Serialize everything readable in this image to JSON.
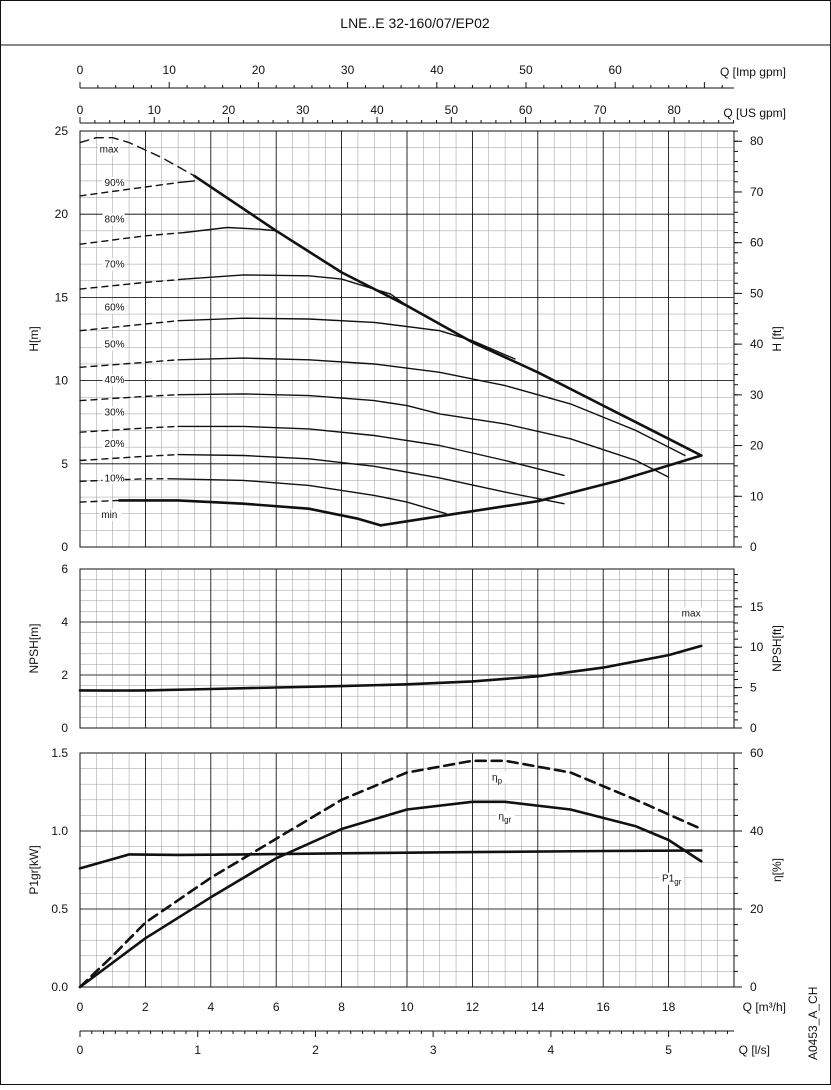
{
  "title": "LNE..E 32-160/07/EP02",
  "code": "A0453_A_CH",
  "colors": {
    "ink": "#111111",
    "grid": "#000000",
    "minor": "#9a9a9a",
    "bg": "#ffffff"
  },
  "chart_data": [
    {
      "type": "line",
      "panel": "head",
      "title": "LNE..E 32-160/07/EP02",
      "xlabel": "Q [m³/h]",
      "ylabel": "H[m]",
      "y2label": "H [ft]",
      "xlim": [
        0,
        20
      ],
      "ylim": [
        0,
        25
      ],
      "y2lim": [
        0,
        82.02
      ],
      "grid": true,
      "x_ticks": [
        0,
        2,
        4,
        6,
        8,
        10,
        12,
        14,
        16,
        18
      ],
      "y_ticks": [
        0,
        5,
        10,
        15,
        20,
        25
      ],
      "y2_ticks": [
        0,
        10,
        20,
        30,
        40,
        50,
        60,
        70,
        80
      ],
      "top_axes": [
        {
          "label": "Q [Imp gpm]",
          "ticks": [
            0,
            10,
            20,
            30,
            40,
            50,
            60
          ],
          "per_m3h": 3.666
        },
        {
          "label": "Q [US gpm]",
          "ticks": [
            0,
            10,
            20,
            30,
            40,
            50,
            60,
            70,
            80
          ],
          "per_m3h": 4.403
        }
      ],
      "series": [
        {
          "name": "max",
          "style": "dashed",
          "points": [
            [
              0,
              24.3
            ],
            [
              0.5,
              24.6
            ],
            [
              1,
              24.6
            ],
            [
              1.5,
              24.3
            ],
            [
              2.5,
              23.4
            ],
            [
              3.5,
              22.3
            ]
          ]
        },
        {
          "name": "max",
          "style": "bold",
          "points": [
            [
              3.5,
              22.3
            ],
            [
              6,
              19.0
            ],
            [
              8,
              16.5
            ],
            [
              10,
              14.5
            ],
            [
              12,
              12.3
            ],
            [
              14,
              10.5
            ],
            [
              16,
              8.5
            ],
            [
              18,
              6.5
            ],
            [
              19.0,
              5.5
            ]
          ]
        },
        {
          "name": "90%",
          "style": "dashed",
          "points": [
            [
              0,
              21.1
            ],
            [
              1.5,
              21.5
            ],
            [
              3.0,
              21.9
            ]
          ]
        },
        {
          "name": "90%",
          "style": "solid",
          "points": [
            [
              3.0,
              21.9
            ],
            [
              3.5,
              22.0
            ]
          ]
        },
        {
          "name": "80%",
          "style": "dashed",
          "points": [
            [
              0,
              18.2
            ],
            [
              2,
              18.7
            ],
            [
              3.2,
              18.9
            ]
          ]
        },
        {
          "name": "80%",
          "style": "solid",
          "points": [
            [
              3.2,
              18.9
            ],
            [
              4.5,
              19.2
            ],
            [
              5.5,
              19.1
            ],
            [
              6.0,
              19.0
            ]
          ]
        },
        {
          "name": "70%",
          "style": "dashed",
          "points": [
            [
              0,
              15.5
            ],
            [
              2,
              15.9
            ],
            [
              3.2,
              16.1
            ]
          ]
        },
        {
          "name": "70%",
          "style": "solid",
          "points": [
            [
              3.2,
              16.1
            ],
            [
              5,
              16.35
            ],
            [
              7,
              16.3
            ],
            [
              8.0,
              16.1
            ],
            [
              9.5,
              15.2
            ],
            [
              10.0,
              14.5
            ]
          ]
        },
        {
          "name": "60%",
          "style": "dashed",
          "points": [
            [
              0,
              13.0
            ],
            [
              2,
              13.4
            ],
            [
              3.0,
              13.6
            ]
          ]
        },
        {
          "name": "60%",
          "style": "solid",
          "points": [
            [
              3.0,
              13.6
            ],
            [
              5,
              13.75
            ],
            [
              7,
              13.7
            ],
            [
              9,
              13.5
            ],
            [
              11,
              13.0
            ],
            [
              12,
              12.4
            ],
            [
              13.3,
              11.3
            ]
          ]
        },
        {
          "name": "50%",
          "style": "dashed",
          "points": [
            [
              0,
              10.8
            ],
            [
              2,
              11.1
            ],
            [
              3.0,
              11.25
            ]
          ]
        },
        {
          "name": "50%",
          "style": "solid",
          "points": [
            [
              3.0,
              11.25
            ],
            [
              5,
              11.35
            ],
            [
              7,
              11.25
            ],
            [
              9,
              11.0
            ],
            [
              11,
              10.5
            ],
            [
              13,
              9.7
            ],
            [
              15,
              8.6
            ],
            [
              17,
              7.0
            ],
            [
              18.5,
              5.5
            ]
          ]
        },
        {
          "name": "40%",
          "style": "dashed",
          "points": [
            [
              0,
              8.8
            ],
            [
              2,
              9.05
            ],
            [
              3.0,
              9.15
            ]
          ]
        },
        {
          "name": "40%",
          "style": "solid",
          "points": [
            [
              3.0,
              9.15
            ],
            [
              5,
              9.2
            ],
            [
              7,
              9.1
            ],
            [
              9,
              8.8
            ],
            [
              10,
              8.5
            ],
            [
              11,
              8.0
            ],
            [
              13,
              7.4
            ],
            [
              15,
              6.5
            ],
            [
              17,
              5.2
            ],
            [
              18,
              4.2
            ]
          ]
        },
        {
          "name": "30%",
          "style": "dashed",
          "points": [
            [
              0,
              6.9
            ],
            [
              2,
              7.15
            ],
            [
              3.0,
              7.25
            ]
          ]
        },
        {
          "name": "30%",
          "style": "solid",
          "points": [
            [
              3.0,
              7.25
            ],
            [
              5,
              7.25
            ],
            [
              7,
              7.1
            ],
            [
              9,
              6.7
            ],
            [
              11,
              6.1
            ],
            [
              13,
              5.2
            ],
            [
              14.8,
              4.3
            ]
          ]
        },
        {
          "name": "20%",
          "style": "dashed",
          "points": [
            [
              0,
              5.2
            ],
            [
              2,
              5.45
            ],
            [
              3.0,
              5.55
            ]
          ]
        },
        {
          "name": "20%",
          "style": "solid",
          "points": [
            [
              3.0,
              5.55
            ],
            [
              5,
              5.5
            ],
            [
              7,
              5.3
            ],
            [
              9,
              4.85
            ],
            [
              11,
              4.15
            ],
            [
              13,
              3.3
            ],
            [
              14.8,
              2.6
            ]
          ]
        },
        {
          "name": "10%",
          "style": "dashed",
          "points": [
            [
              0,
              3.95
            ],
            [
              2,
              4.1
            ],
            [
              2.8,
              4.1
            ]
          ]
        },
        {
          "name": "10%",
          "style": "solid",
          "points": [
            [
              2.8,
              4.1
            ],
            [
              5,
              4.0
            ],
            [
              7,
              3.7
            ],
            [
              9,
              3.1
            ],
            [
              10,
              2.7
            ],
            [
              11.2,
              2.0
            ]
          ]
        },
        {
          "name": "min",
          "style": "dashed",
          "points": [
            [
              0,
              2.7
            ],
            [
              1.2,
              2.8
            ]
          ]
        },
        {
          "name": "min",
          "style": "bold",
          "points": [
            [
              1.2,
              2.8
            ],
            [
              3,
              2.8
            ],
            [
              5,
              2.6
            ],
            [
              7,
              2.3
            ],
            [
              8.5,
              1.7
            ],
            [
              9.2,
              1.3
            ]
          ]
        },
        {
          "name": "min Q",
          "style": "bold",
          "points": [
            [
              9.2,
              1.3
            ],
            [
              11.5,
              2.0
            ],
            [
              14,
              2.75
            ],
            [
              16.5,
              4.0
            ],
            [
              18,
              4.9
            ],
            [
              19.0,
              5.5
            ]
          ]
        }
      ],
      "curve_labels": [
        {
          "text": "max",
          "x": 0.6,
          "y": 23.7
        },
        {
          "text": "90%",
          "x": 0.75,
          "y": 21.7
        },
        {
          "text": "80%",
          "x": 0.75,
          "y": 19.5
        },
        {
          "text": "70%",
          "x": 0.75,
          "y": 16.8
        },
        {
          "text": "60%",
          "x": 0.75,
          "y": 14.2
        },
        {
          "text": "50%",
          "x": 0.75,
          "y": 12.0
        },
        {
          "text": "40%",
          "x": 0.75,
          "y": 9.85
        },
        {
          "text": "30%",
          "x": 0.75,
          "y": 7.9
        },
        {
          "text": "20%",
          "x": 0.75,
          "y": 6.0
        },
        {
          "text": "10%",
          "x": 0.75,
          "y": 3.95
        },
        {
          "text": "min",
          "x": 0.65,
          "y": 1.75
        }
      ]
    },
    {
      "type": "line",
      "panel": "npsh",
      "xlim": [
        0,
        20
      ],
      "ylim": [
        0,
        6
      ],
      "y2lim": [
        0,
        19.685
      ],
      "ylabel": "NPSH[m]",
      "y2label": "NPSH[ft]",
      "grid": true,
      "x_ticks": [
        0,
        2,
        4,
        6,
        8,
        10,
        12,
        14,
        16,
        18
      ],
      "y_ticks": [
        0,
        2,
        4,
        6
      ],
      "y2_ticks": [
        0,
        5,
        10,
        15
      ],
      "series": [
        {
          "name": "max",
          "style": "bold",
          "points": [
            [
              0,
              1.42
            ],
            [
              1,
              1.41
            ],
            [
              2,
              1.42
            ],
            [
              4,
              1.47
            ],
            [
              6,
              1.53
            ],
            [
              8,
              1.58
            ],
            [
              10,
              1.65
            ],
            [
              12,
              1.76
            ],
            [
              14,
              1.95
            ],
            [
              16,
              2.28
            ],
            [
              18,
              2.75
            ],
            [
              19.0,
              3.1
            ]
          ]
        }
      ],
      "curve_labels": [
        {
          "text": "max",
          "x": 18.4,
          "y": 4.2
        }
      ]
    },
    {
      "type": "line",
      "panel": "power",
      "xlim": [
        0,
        20
      ],
      "ylim": [
        0,
        1.5
      ],
      "y2lim": [
        0,
        60
      ],
      "xlabel": "Q [m³/h]",
      "x2label": "Q [l/s]",
      "ylabel": "P1gr[kW]",
      "y2label": "η[%]",
      "grid": true,
      "x_ticks": [
        0,
        2,
        4,
        6,
        8,
        10,
        12,
        14,
        16,
        18
      ],
      "y_ticks_labels": [
        "0.0",
        "0.5",
        "1.0",
        "1.5"
      ],
      "y_ticks": [
        0,
        0.5,
        1.0,
        1.5
      ],
      "y2_ticks": [
        0,
        20,
        40,
        60
      ],
      "bottom_axis": {
        "label": "Q [l/s]",
        "ticks": [
          0,
          1,
          2,
          3,
          4,
          5
        ],
        "m3h_per_unit": 3.6
      },
      "series": [
        {
          "name": "η_p",
          "axis": "y2",
          "style": "dashed",
          "points": [
            [
              0,
              0
            ],
            [
              1,
              8
            ],
            [
              2,
              16.5
            ],
            [
              4,
              28
            ],
            [
              6,
              38
            ],
            [
              8,
              48
            ],
            [
              10,
              55
            ],
            [
              12,
              58
            ],
            [
              13,
              58
            ],
            [
              15,
              55
            ],
            [
              17,
              48
            ],
            [
              19.0,
              40.5
            ]
          ]
        },
        {
          "name": "η_gr",
          "axis": "y2",
          "style": "bold",
          "points": [
            [
              0,
              0
            ],
            [
              2,
              12.5
            ],
            [
              4,
              23
            ],
            [
              6,
              33
            ],
            [
              8,
              40.5
            ],
            [
              10,
              45.5
            ],
            [
              12,
              47.5
            ],
            [
              13,
              47.5
            ],
            [
              15,
              45.5
            ],
            [
              17,
              41.2
            ],
            [
              18,
              37.7
            ],
            [
              19.0,
              32.2
            ]
          ]
        },
        {
          "name": "P1_gr",
          "axis": "y",
          "style": "bold",
          "points": [
            [
              0,
              0.76
            ],
            [
              1,
              0.82
            ],
            [
              1.5,
              0.85
            ],
            [
              3,
              0.847
            ],
            [
              5,
              0.85
            ],
            [
              8,
              0.857
            ],
            [
              12,
              0.865
            ],
            [
              16,
              0.872
            ],
            [
              19.0,
              0.875
            ]
          ]
        }
      ],
      "curve_labels": [
        {
          "text": "η",
          "sub": "p",
          "x": 12.6,
          "y2": 53
        },
        {
          "text": "η",
          "sub": "gr",
          "x": 12.8,
          "y2": 43
        },
        {
          "text": "P1",
          "sub": "gr",
          "x": 17.8,
          "y2": 27
        }
      ]
    }
  ]
}
